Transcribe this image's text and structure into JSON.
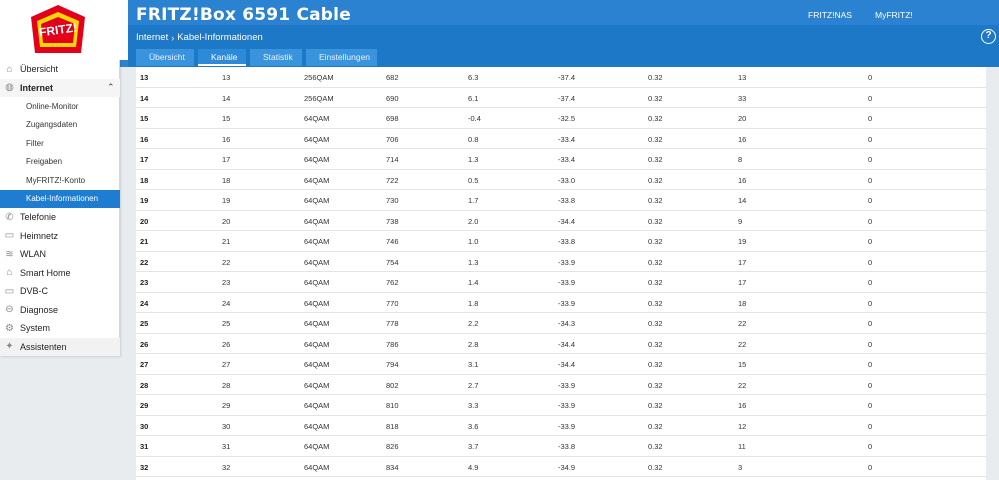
{
  "app": {
    "title": "FRITZ!Box 6591 Cable",
    "logo_text": "FRITZ!",
    "top_links": [
      "FRITZ!NAS",
      "MyFRITZ!"
    ],
    "help_label": "?"
  },
  "breadcrumb": {
    "section": "Internet",
    "page": "Kabel-Informationen"
  },
  "tabs": [
    {
      "label": "Übersicht",
      "active": false
    },
    {
      "label": "Kanäle",
      "active": true
    },
    {
      "label": "Statistik",
      "active": false
    },
    {
      "label": "Einstellungen",
      "active": false
    }
  ],
  "sidebar": {
    "items": [
      {
        "label": "Übersicht",
        "icon": "home-icon",
        "level": 0
      },
      {
        "label": "Internet",
        "icon": "globe-icon",
        "level": 0,
        "expanded": true
      },
      {
        "label": "Online-Monitor",
        "level": 1
      },
      {
        "label": "Zugangsdaten",
        "level": 1
      },
      {
        "label": "Filter",
        "level": 1
      },
      {
        "label": "Freigaben",
        "level": 1
      },
      {
        "label": "MyFRITZ!-Konto",
        "level": 1
      },
      {
        "label": "Kabel-Informationen",
        "level": 1,
        "selected": true
      },
      {
        "label": "Telefonie",
        "icon": "phone-icon",
        "level": 0
      },
      {
        "label": "Heimnetz",
        "icon": "network-icon",
        "level": 0
      },
      {
        "label": "WLAN",
        "icon": "wifi-icon",
        "level": 0
      },
      {
        "label": "Smart Home",
        "icon": "smart-home-icon",
        "level": 0
      },
      {
        "label": "DVB-C",
        "icon": "tv-icon",
        "level": 0
      },
      {
        "label": "Diagnose",
        "icon": "diagnose-icon",
        "level": 0
      },
      {
        "label": "System",
        "icon": "gear-icon",
        "level": 0
      },
      {
        "label": "Assistenten",
        "icon": "wizard-icon",
        "level": 0
      }
    ]
  },
  "table": {
    "rows": [
      [
        "13",
        "13",
        "256QAM",
        "682",
        "6.3",
        "-37.4",
        "0.32",
        "13",
        "0"
      ],
      [
        "14",
        "14",
        "256QAM",
        "690",
        "6.1",
        "-37.4",
        "0.32",
        "33",
        "0"
      ],
      [
        "15",
        "15",
        "64QAM",
        "698",
        "-0.4",
        "-32.5",
        "0.32",
        "20",
        "0"
      ],
      [
        "16",
        "16",
        "64QAM",
        "706",
        "0.8",
        "-33.4",
        "0.32",
        "16",
        "0"
      ],
      [
        "17",
        "17",
        "64QAM",
        "714",
        "1.3",
        "-33.4",
        "0.32",
        "8",
        "0"
      ],
      [
        "18",
        "18",
        "64QAM",
        "722",
        "0.5",
        "-33.0",
        "0.32",
        "16",
        "0"
      ],
      [
        "19",
        "19",
        "64QAM",
        "730",
        "1.7",
        "-33.8",
        "0.32",
        "14",
        "0"
      ],
      [
        "20",
        "20",
        "64QAM",
        "738",
        "2.0",
        "-34.4",
        "0.32",
        "9",
        "0"
      ],
      [
        "21",
        "21",
        "64QAM",
        "746",
        "1.0",
        "-33.8",
        "0.32",
        "19",
        "0"
      ],
      [
        "22",
        "22",
        "64QAM",
        "754",
        "1.3",
        "-33.9",
        "0.32",
        "17",
        "0"
      ],
      [
        "23",
        "23",
        "64QAM",
        "762",
        "1.4",
        "-33.9",
        "0.32",
        "17",
        "0"
      ],
      [
        "24",
        "24",
        "64QAM",
        "770",
        "1.8",
        "-33.9",
        "0.32",
        "18",
        "0"
      ],
      [
        "25",
        "25",
        "64QAM",
        "778",
        "2.2",
        "-34.3",
        "0.32",
        "22",
        "0"
      ],
      [
        "26",
        "26",
        "64QAM",
        "786",
        "2.8",
        "-34.4",
        "0.32",
        "22",
        "0"
      ],
      [
        "27",
        "27",
        "64QAM",
        "794",
        "3.1",
        "-34.4",
        "0.32",
        "15",
        "0"
      ],
      [
        "28",
        "28",
        "64QAM",
        "802",
        "2.7",
        "-33.9",
        "0.32",
        "22",
        "0"
      ],
      [
        "29",
        "29",
        "64QAM",
        "810",
        "3.3",
        "-33.9",
        "0.32",
        "16",
        "0"
      ],
      [
        "30",
        "30",
        "64QAM",
        "818",
        "3.6",
        "-33.9",
        "0.32",
        "12",
        "0"
      ],
      [
        "31",
        "31",
        "64QAM",
        "826",
        "3.7",
        "-33.8",
        "0.32",
        "11",
        "0"
      ],
      [
        "32",
        "32",
        "64QAM",
        "834",
        "4.9",
        "-34.9",
        "0.32",
        "3",
        "0"
      ]
    ]
  },
  "colors": {
    "header_blue": "#2a82d0",
    "selected_blue": "#1f7dd1",
    "logo_red": "#e2001a",
    "logo_yellow": "#ffd700"
  }
}
